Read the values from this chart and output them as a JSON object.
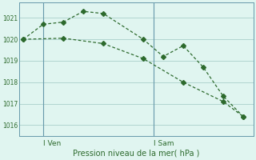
{
  "line1_x": [
    0,
    1,
    2,
    3,
    4,
    6,
    7,
    8,
    9,
    10,
    11
  ],
  "line1_y": [
    1020.0,
    1020.7,
    1020.8,
    1021.3,
    1021.2,
    1020.0,
    1019.2,
    1019.7,
    1018.7,
    1017.35,
    1016.4
  ],
  "line2_x": [
    0,
    2,
    4,
    6,
    8,
    10,
    11
  ],
  "line2_y": [
    1020.0,
    1020.05,
    1019.8,
    1019.1,
    1018.0,
    1017.1,
    1016.4
  ],
  "line_color": "#2d6a2d",
  "bg_color": "#e0f5f0",
  "grid_color": "#aacfca",
  "xlabel": "Pression niveau de la mer( hPa )",
  "ylim": [
    1015.5,
    1021.7
  ],
  "yticks": [
    1016,
    1017,
    1018,
    1019,
    1020,
    1021
  ],
  "xlim": [
    -0.2,
    11.5
  ],
  "ven_x": 1.0,
  "sam_x": 6.5,
  "ven_label": "I Ven",
  "sam_label": "I Sam",
  "day_line_color": "#6699aa"
}
